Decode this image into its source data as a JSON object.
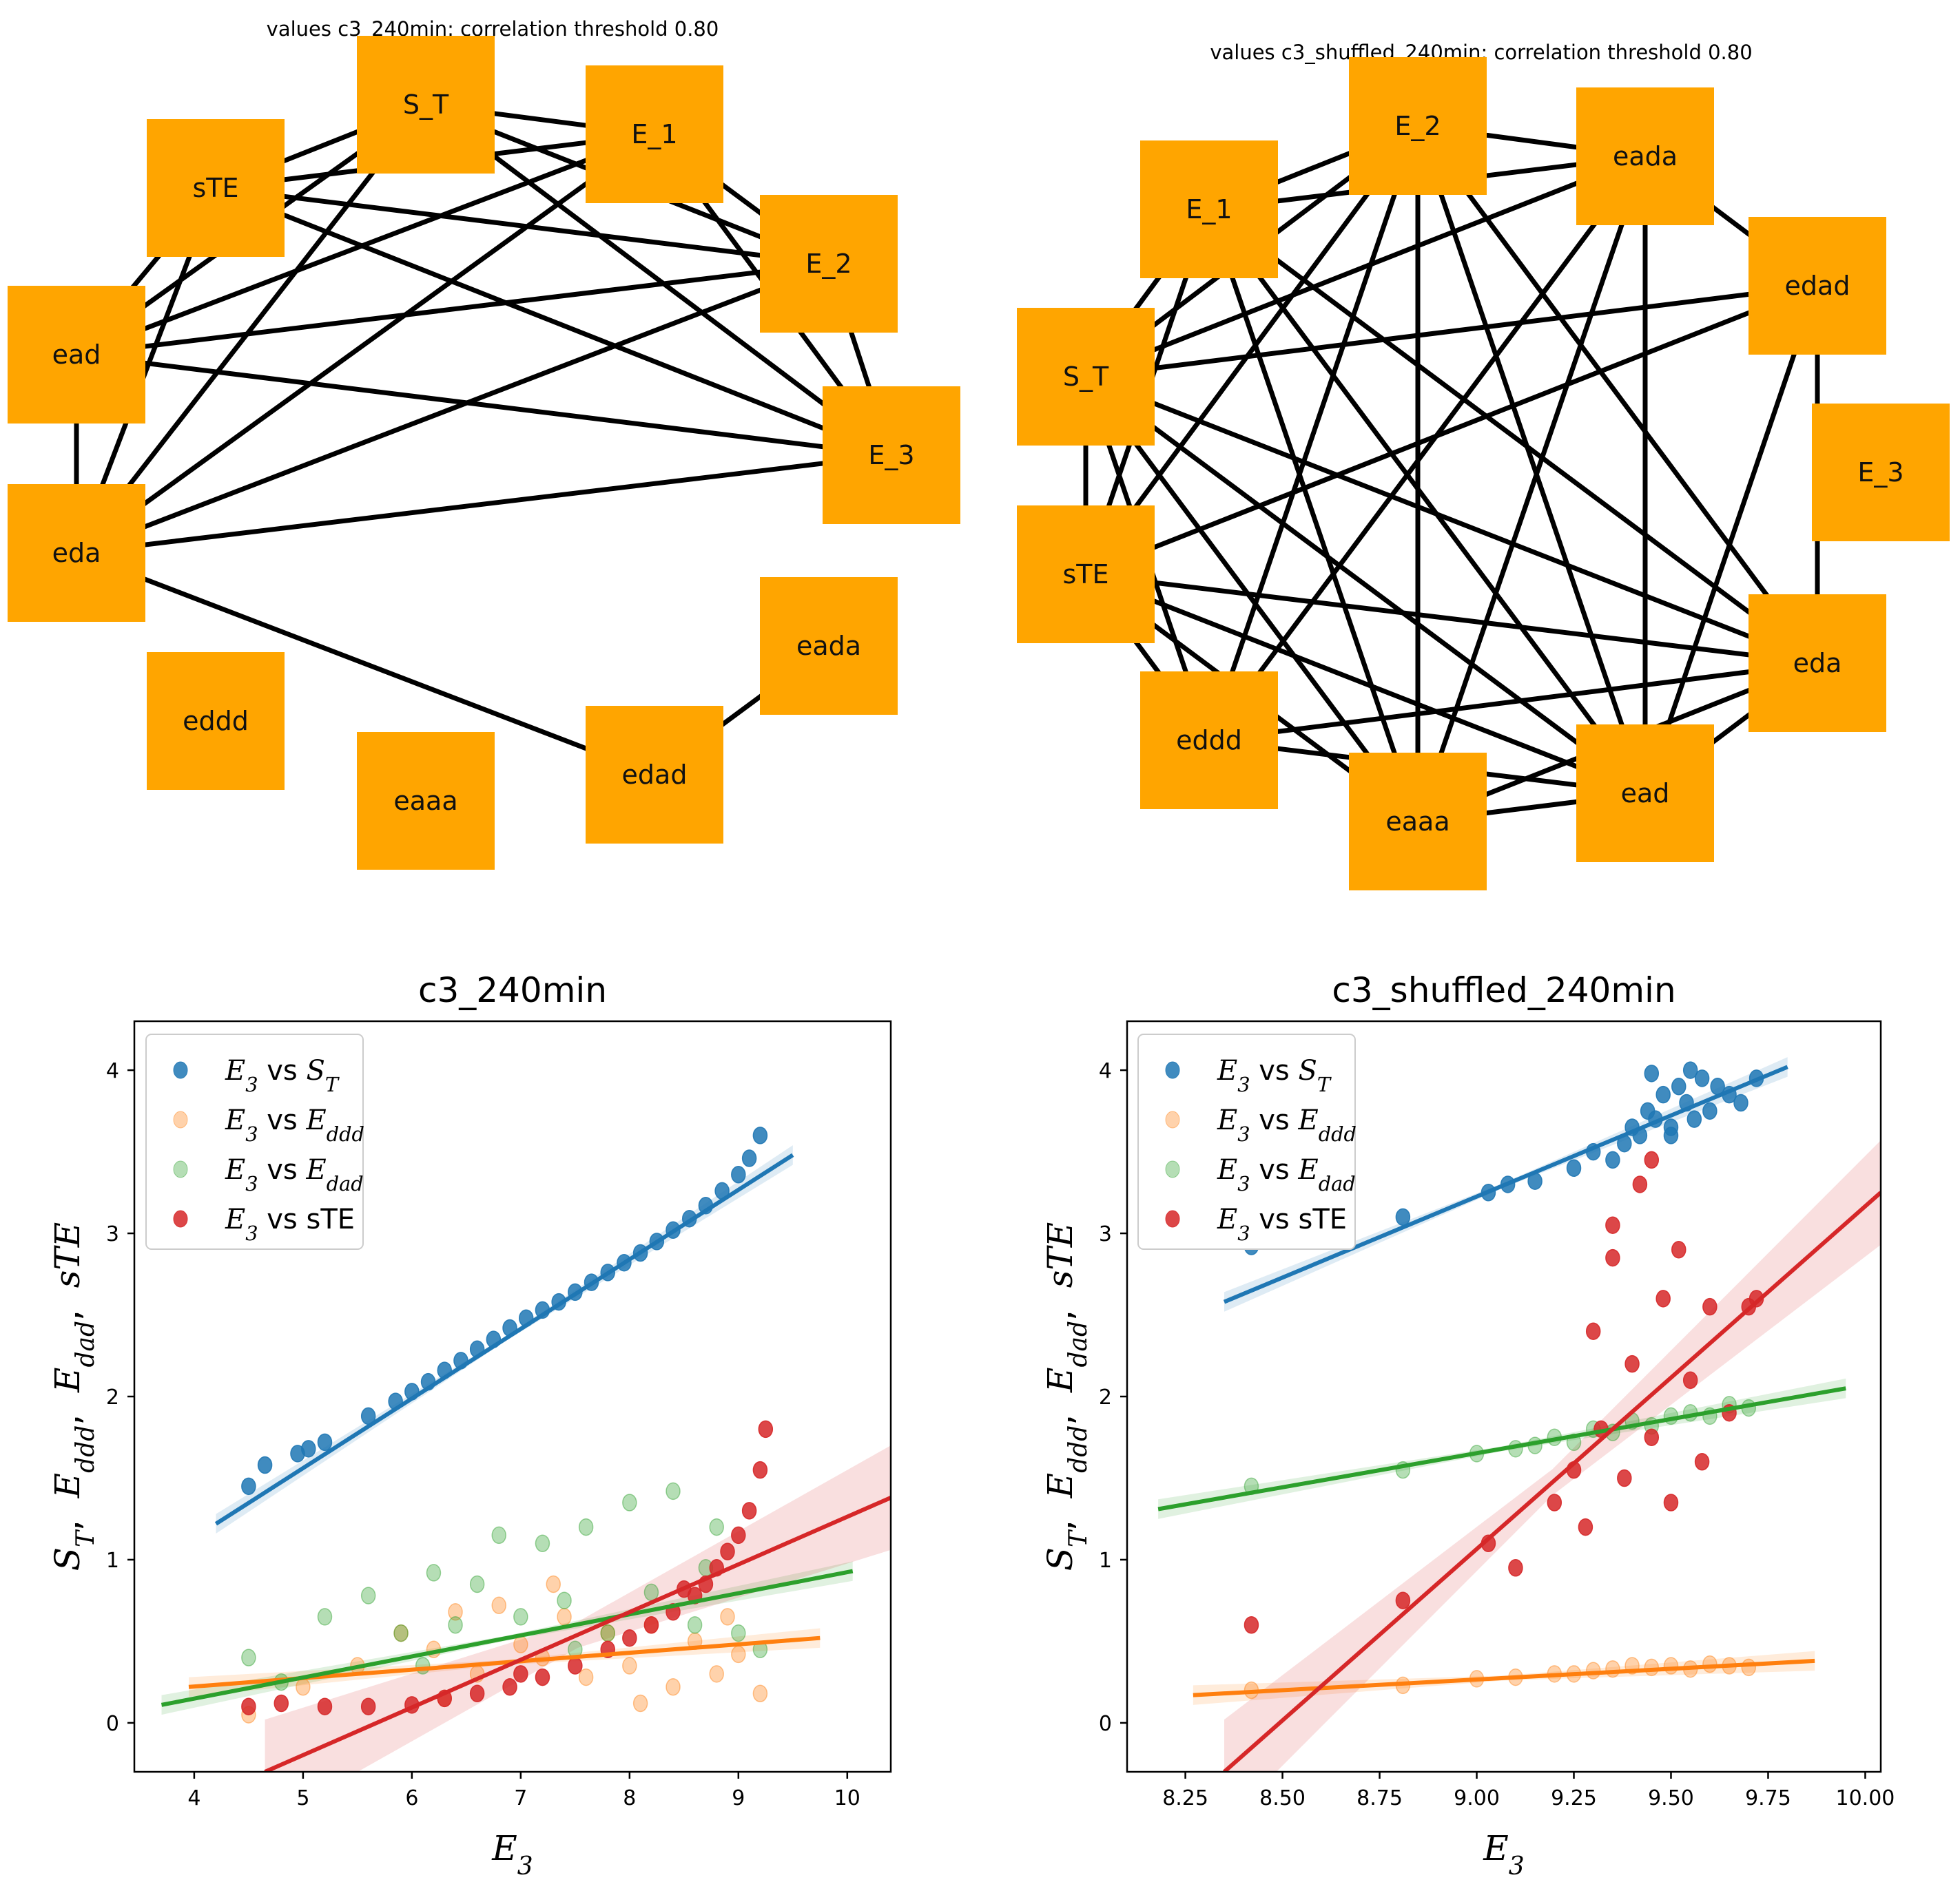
{
  "networks": [
    {
      "title": "values c3_240min: correlation threshold 0.80",
      "nodes": [
        {
          "id": "S_T",
          "label": "S_T"
        },
        {
          "id": "E_1",
          "label": "E_1"
        },
        {
          "id": "E_2",
          "label": "E_2"
        },
        {
          "id": "E_3",
          "label": "E_3"
        },
        {
          "id": "eada",
          "label": "eada"
        },
        {
          "id": "edad",
          "label": "edad"
        },
        {
          "id": "eaaa",
          "label": "eaaa"
        },
        {
          "id": "eddd",
          "label": "eddd"
        },
        {
          "id": "eda",
          "label": "eda"
        },
        {
          "id": "ead",
          "label": "ead"
        },
        {
          "id": "sTE",
          "label": "sTE"
        }
      ],
      "edges": [
        [
          "S_T",
          "E_1"
        ],
        [
          "S_T",
          "E_2"
        ],
        [
          "S_T",
          "E_3"
        ],
        [
          "S_T",
          "sTE"
        ],
        [
          "S_T",
          "ead"
        ],
        [
          "S_T",
          "eda"
        ],
        [
          "E_1",
          "E_2"
        ],
        [
          "E_1",
          "E_3"
        ],
        [
          "E_1",
          "sTE"
        ],
        [
          "E_1",
          "ead"
        ],
        [
          "E_1",
          "eda"
        ],
        [
          "E_2",
          "E_3"
        ],
        [
          "E_2",
          "sTE"
        ],
        [
          "E_2",
          "ead"
        ],
        [
          "E_2",
          "eda"
        ],
        [
          "E_3",
          "sTE"
        ],
        [
          "E_3",
          "ead"
        ],
        [
          "E_3",
          "eda"
        ],
        [
          "sTE",
          "ead"
        ],
        [
          "sTE",
          "eda"
        ],
        [
          "ead",
          "eda"
        ],
        [
          "eda",
          "edad"
        ],
        [
          "edad",
          "eada"
        ]
      ]
    },
    {
      "title": "values c3_shuffled_240min: correlation threshold 0.80",
      "nodes": [
        {
          "id": "E_2",
          "label": "E_2"
        },
        {
          "id": "eada",
          "label": "eada"
        },
        {
          "id": "edad",
          "label": "edad"
        },
        {
          "id": "E_3",
          "label": "E_3"
        },
        {
          "id": "eda",
          "label": "eda"
        },
        {
          "id": "ead",
          "label": "ead"
        },
        {
          "id": "eaaa",
          "label": "eaaa"
        },
        {
          "id": "eddd",
          "label": "eddd"
        },
        {
          "id": "sTE",
          "label": "sTE"
        },
        {
          "id": "S_T",
          "label": "S_T"
        },
        {
          "id": "E_1",
          "label": "E_1"
        }
      ],
      "edges": [
        [
          "E_1",
          "E_2"
        ],
        [
          "E_1",
          "eada"
        ],
        [
          "E_1",
          "eda"
        ],
        [
          "E_1",
          "ead"
        ],
        [
          "E_1",
          "eaaa"
        ],
        [
          "E_1",
          "S_T"
        ],
        [
          "E_1",
          "sTE"
        ],
        [
          "E_2",
          "eada"
        ],
        [
          "E_2",
          "eda"
        ],
        [
          "E_2",
          "ead"
        ],
        [
          "E_2",
          "eaaa"
        ],
        [
          "E_2",
          "eddd"
        ],
        [
          "E_2",
          "S_T"
        ],
        [
          "E_2",
          "sTE"
        ],
        [
          "eada",
          "edad"
        ],
        [
          "eada",
          "ead"
        ],
        [
          "eada",
          "eaaa"
        ],
        [
          "eada",
          "eddd"
        ],
        [
          "eada",
          "S_T"
        ],
        [
          "edad",
          "eda"
        ],
        [
          "edad",
          "ead"
        ],
        [
          "edad",
          "S_T"
        ],
        [
          "edad",
          "sTE"
        ],
        [
          "eda",
          "S_T"
        ],
        [
          "eda",
          "sTE"
        ],
        [
          "eda",
          "eddd"
        ],
        [
          "eda",
          "eaaa"
        ],
        [
          "eda",
          "ead"
        ],
        [
          "ead",
          "S_T"
        ],
        [
          "ead",
          "sTE"
        ],
        [
          "ead",
          "eddd"
        ],
        [
          "ead",
          "eaaa"
        ],
        [
          "eaaa",
          "S_T"
        ],
        [
          "eaaa",
          "sTE"
        ],
        [
          "eddd",
          "sTE"
        ],
        [
          "eddd",
          "S_T"
        ],
        [
          "S_T",
          "sTE"
        ]
      ]
    }
  ],
  "chart_data": [
    {
      "type": "scatter",
      "title": "c3_240min",
      "xlabel": "E",
      "xlabel_sub": "3",
      "ylabel": "S_T,  E_ddd,  E_dad,  sTE",
      "xlim": [
        3.45,
        10.4
      ],
      "ylim": [
        -0.3,
        4.3
      ],
      "xticks": [
        4,
        5,
        6,
        7,
        8,
        9,
        10
      ],
      "xtick_labels": [
        "4",
        "5",
        "6",
        "7",
        "8",
        "9",
        "10"
      ],
      "yticks": [
        0,
        1,
        2,
        3,
        4
      ],
      "ytick_labels": [
        "0",
        "1",
        "2",
        "3",
        "4"
      ],
      "legend_position": "upper-left",
      "series": [
        {
          "name": "E3 vs ST",
          "color": "#1f77b4",
          "x": [
            4.5,
            4.65,
            4.95,
            5.05,
            5.2,
            5.6,
            5.85,
            6.0,
            6.15,
            6.3,
            6.45,
            6.6,
            6.75,
            6.9,
            7.05,
            7.2,
            7.35,
            7.5,
            7.65,
            7.8,
            7.95,
            8.1,
            8.25,
            8.4,
            8.55,
            8.7,
            8.85,
            9.0,
            9.1,
            9.2
          ],
          "y": [
            1.45,
            1.58,
            1.65,
            1.68,
            1.72,
            1.88,
            1.97,
            2.03,
            2.09,
            2.16,
            2.22,
            2.29,
            2.35,
            2.42,
            2.48,
            2.53,
            2.58,
            2.64,
            2.7,
            2.76,
            2.82,
            2.88,
            2.95,
            3.02,
            3.09,
            3.17,
            3.26,
            3.36,
            3.46,
            3.6
          ],
          "fit_x": [
            4.2,
            9.5
          ],
          "fit_y": [
            1.22,
            3.48
          ]
        },
        {
          "name": "E3 vs Eddd",
          "color": "#ff7f0e",
          "x": [
            4.5,
            5.0,
            5.5,
            5.9,
            6.2,
            6.4,
            6.6,
            6.8,
            7.0,
            7.2,
            7.4,
            7.6,
            7.8,
            8.0,
            8.2,
            8.4,
            8.6,
            8.8,
            9.0,
            9.2,
            6.3,
            7.3,
            8.1,
            8.9
          ],
          "y": [
            0.05,
            0.22,
            0.35,
            0.55,
            0.45,
            0.68,
            0.3,
            0.72,
            0.48,
            0.4,
            0.65,
            0.28,
            0.55,
            0.35,
            0.6,
            0.22,
            0.5,
            0.3,
            0.42,
            0.18,
            0.15,
            0.85,
            0.12,
            0.65
          ],
          "fit_x": [
            3.95,
            9.75
          ],
          "fit_y": [
            0.22,
            0.52
          ]
        },
        {
          "name": "E3 vs Edad",
          "color": "#2ca02c",
          "x": [
            4.5,
            4.8,
            5.2,
            5.6,
            5.9,
            6.2,
            6.4,
            6.6,
            6.8,
            7.0,
            7.2,
            7.4,
            7.6,
            7.8,
            8.0,
            8.2,
            8.4,
            8.6,
            8.8,
            9.0,
            9.2,
            6.1,
            7.5,
            8.7
          ],
          "y": [
            0.4,
            0.25,
            0.65,
            0.78,
            0.55,
            0.92,
            0.6,
            0.85,
            1.15,
            0.65,
            1.1,
            0.75,
            1.2,
            0.55,
            1.35,
            0.8,
            1.42,
            0.6,
            1.2,
            0.55,
            0.45,
            0.35,
            0.45,
            0.95
          ],
          "fit_x": [
            3.7,
            10.05
          ],
          "fit_y": [
            0.11,
            0.93
          ]
        },
        {
          "name": "E3 vs sTE",
          "color": "#d62728",
          "x": [
            4.5,
            4.8,
            5.2,
            5.6,
            6.0,
            6.3,
            6.6,
            6.9,
            7.2,
            7.5,
            7.8,
            8.0,
            8.2,
            8.4,
            8.6,
            8.7,
            8.8,
            8.9,
            9.0,
            9.1,
            9.2,
            9.25,
            7.0,
            8.5
          ],
          "y": [
            0.1,
            0.12,
            0.1,
            0.1,
            0.11,
            0.15,
            0.18,
            0.22,
            0.28,
            0.35,
            0.45,
            0.52,
            0.6,
            0.68,
            0.78,
            0.85,
            0.95,
            1.05,
            1.15,
            1.3,
            1.55,
            1.8,
            0.3,
            0.82
          ],
          "fit_x": [
            4.65,
            10.4
          ],
          "fit_y": [
            -0.3,
            1.38
          ]
        }
      ]
    },
    {
      "type": "scatter",
      "title": "c3_shuffled_240min",
      "xlabel": "E",
      "xlabel_sub": "3",
      "ylabel": "S_T,  E_ddd,  E_dad,  sTE",
      "xlim": [
        8.1,
        10.04
      ],
      "ylim": [
        -0.3,
        4.3
      ],
      "xticks": [
        8.25,
        8.5,
        8.75,
        9.0,
        9.25,
        9.5,
        9.75,
        10.0
      ],
      "xtick_labels": [
        "8.25",
        "8.50",
        "8.75",
        "9.00",
        "9.25",
        "9.50",
        "9.75",
        "10.00"
      ],
      "yticks": [
        0,
        1,
        2,
        3,
        4
      ],
      "ytick_labels": [
        "0",
        "1",
        "2",
        "3",
        "4"
      ],
      "legend_position": "upper-left",
      "series": [
        {
          "name": "E3 vs ST",
          "color": "#1f77b4",
          "x": [
            8.42,
            8.81,
            9.03,
            9.08,
            9.15,
            9.25,
            9.3,
            9.35,
            9.38,
            9.4,
            9.42,
            9.44,
            9.46,
            9.48,
            9.5,
            9.52,
            9.54,
            9.56,
            9.58,
            9.6,
            9.62,
            9.65,
            9.68,
            9.72,
            9.45,
            9.5,
            9.55
          ],
          "y": [
            2.92,
            3.1,
            3.25,
            3.3,
            3.32,
            3.4,
            3.5,
            3.45,
            3.55,
            3.65,
            3.6,
            3.75,
            3.7,
            3.85,
            3.65,
            3.9,
            3.8,
            3.7,
            3.95,
            3.75,
            3.9,
            3.85,
            3.8,
            3.95,
            3.98,
            3.6,
            4.0
          ],
          "fit_x": [
            8.35,
            9.8
          ],
          "fit_y": [
            2.58,
            4.02
          ]
        },
        {
          "name": "E3 vs Eddd",
          "color": "#ff7f0e",
          "x": [
            8.42,
            8.81,
            9.0,
            9.1,
            9.2,
            9.25,
            9.3,
            9.35,
            9.4,
            9.45,
            9.5,
            9.55,
            9.6,
            9.65,
            9.7
          ],
          "y": [
            0.2,
            0.23,
            0.27,
            0.28,
            0.3,
            0.3,
            0.32,
            0.33,
            0.35,
            0.34,
            0.35,
            0.33,
            0.36,
            0.35,
            0.34
          ],
          "fit_x": [
            8.27,
            9.87
          ],
          "fit_y": [
            0.17,
            0.38
          ]
        },
        {
          "name": "E3 vs Edad",
          "color": "#2ca02c",
          "x": [
            8.42,
            8.81,
            9.0,
            9.1,
            9.15,
            9.2,
            9.25,
            9.3,
            9.35,
            9.4,
            9.45,
            9.5,
            9.55,
            9.6,
            9.65,
            9.7
          ],
          "y": [
            1.45,
            1.55,
            1.65,
            1.68,
            1.7,
            1.75,
            1.72,
            1.8,
            1.78,
            1.85,
            1.82,
            1.88,
            1.9,
            1.88,
            1.95,
            1.93
          ],
          "fit_x": [
            8.18,
            9.95
          ],
          "fit_y": [
            1.31,
            2.05
          ]
        },
        {
          "name": "E3 vs sTE",
          "color": "#d62728",
          "x": [
            8.42,
            8.81,
            9.03,
            9.1,
            9.2,
            9.25,
            9.28,
            9.3,
            9.32,
            9.35,
            9.38,
            9.4,
            9.42,
            9.45,
            9.48,
            9.5,
            9.52,
            9.55,
            9.58,
            9.6,
            9.65,
            9.7,
            9.72,
            9.35,
            9.45
          ],
          "y": [
            0.6,
            0.75,
            1.1,
            0.95,
            1.35,
            1.55,
            1.2,
            2.4,
            1.8,
            2.85,
            1.5,
            2.2,
            3.3,
            1.75,
            2.6,
            1.35,
            2.9,
            2.1,
            1.6,
            2.55,
            1.9,
            2.55,
            2.6,
            3.05,
            3.45
          ],
          "fit_x": [
            8.35,
            10.04
          ],
          "fit_y": [
            -0.3,
            3.25
          ]
        }
      ]
    }
  ],
  "legend_entries": [
    {
      "base": "E",
      "sub": "3",
      "vs": " vs ",
      "base2": "S",
      "sub2": "T"
    },
    {
      "base": "E",
      "sub": "3",
      "vs": " vs ",
      "base2": "E",
      "sub2": "ddd"
    },
    {
      "base": "E",
      "sub": "3",
      "vs": " vs ",
      "base2": "E",
      "sub2": "dad"
    },
    {
      "base": "E",
      "sub": "3",
      "vs": " vs ",
      "base2": "sTE",
      "sub2": ""
    }
  ],
  "ylabel_parts": [
    {
      "base": "S",
      "sub": "T"
    },
    {
      "base": "E",
      "sub": "ddd"
    },
    {
      "base": "E",
      "sub": "dad"
    },
    {
      "base": "sTE",
      "sub": ""
    }
  ]
}
